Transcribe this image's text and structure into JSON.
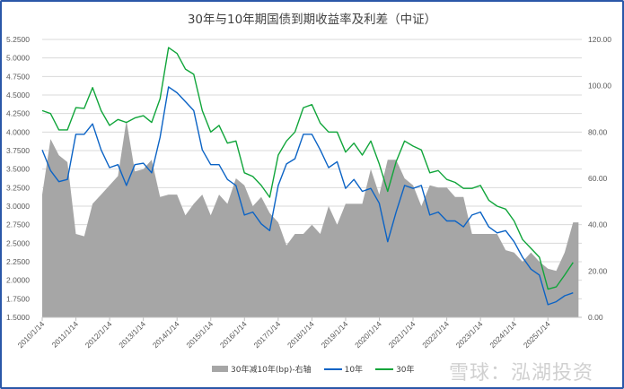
{
  "chart_data": {
    "type": "line",
    "title": "30年与10年期国债到期收益率及利差（中证）",
    "x": [
      "2010-01",
      "2010-04",
      "2010-07",
      "2010-10",
      "2011-01",
      "2011-04",
      "2011-07",
      "2011-10",
      "2012-01",
      "2012-04",
      "2012-07",
      "2012-10",
      "2013-01",
      "2013-04",
      "2013-07",
      "2013-10",
      "2014-01",
      "2014-04",
      "2014-07",
      "2014-10",
      "2015-01",
      "2015-04",
      "2015-07",
      "2015-10",
      "2016-01",
      "2016-04",
      "2016-07",
      "2016-10",
      "2017-01",
      "2017-04",
      "2017-07",
      "2017-10",
      "2018-01",
      "2018-04",
      "2018-07",
      "2018-10",
      "2019-01",
      "2019-04",
      "2019-07",
      "2019-10",
      "2020-01",
      "2020-04",
      "2020-07",
      "2020-10",
      "2021-01",
      "2021-04",
      "2021-07",
      "2021-10",
      "2022-01",
      "2022-04",
      "2022-07",
      "2022-10",
      "2023-01",
      "2023-04",
      "2023-07",
      "2023-10",
      "2024-01",
      "2024-04",
      "2024-07",
      "2024-10",
      "2025-01",
      "2025-04",
      "2025-07",
      "2025-10"
    ],
    "x_tick_labels": [
      "2010/1/14",
      "2011/1/14",
      "2012/1/14",
      "2013/1/14",
      "2014/1/14",
      "2015/1/14",
      "2016/1/14",
      "2017/1/14",
      "2018/1/14",
      "2019/1/14",
      "2020/1/14",
      "2021/1/14",
      "2022/1/14",
      "2023/1/14",
      "2024/1/14",
      "2025/1/14"
    ],
    "y_left": {
      "range": [
        1.5,
        5.25
      ],
      "step": 0.25,
      "tick_labels": [
        "1.5000",
        "1.7500",
        "2.0000",
        "2.2500",
        "2.5000",
        "2.7500",
        "3.0000",
        "3.2500",
        "3.5000",
        "3.7500",
        "4.0000",
        "4.2500",
        "4.5000",
        "4.7500",
        "5.0000",
        "5.2500"
      ]
    },
    "y_right": {
      "range": [
        0,
        120
      ],
      "step": 20,
      "tick_labels": [
        "0.00",
        "20.00",
        "40.00",
        "60.00",
        "80.00",
        "100.00",
        "120.00"
      ]
    },
    "grid": true,
    "legend_position": "bottom",
    "series": [
      {
        "name": "30年减10年(bp)-右轴",
        "kind": "area",
        "axis": "right",
        "color": "#a6a6a6",
        "values": [
          53,
          77,
          70,
          67,
          36,
          35,
          49,
          53,
          57,
          61,
          85,
          63,
          64,
          68,
          52,
          53,
          53,
          44,
          49,
          53,
          44,
          53,
          49,
          60,
          57,
          48,
          52,
          45,
          41,
          31,
          36,
          36,
          40,
          36,
          48,
          40,
          49,
          49,
          49,
          64,
          53,
          68,
          68,
          60,
          57,
          48,
          57,
          56,
          56,
          52,
          52,
          36,
          36,
          36,
          36,
          29,
          28,
          24,
          28,
          24,
          21,
          20,
          28,
          41
        ]
      },
      {
        "name": "10年",
        "kind": "line",
        "axis": "left",
        "color": "#0b63c5",
        "values": [
          3.76,
          3.48,
          3.33,
          3.36,
          3.97,
          3.97,
          4.11,
          3.76,
          3.52,
          3.56,
          3.28,
          3.56,
          3.58,
          3.45,
          3.93,
          4.61,
          4.53,
          4.41,
          4.29,
          3.76,
          3.56,
          3.56,
          3.36,
          3.28,
          2.88,
          2.92,
          2.76,
          2.67,
          3.28,
          3.57,
          3.64,
          3.97,
          3.97,
          3.76,
          3.52,
          3.6,
          3.24,
          3.36,
          3.2,
          3.24,
          3.04,
          2.52,
          2.92,
          3.28,
          3.24,
          3.28,
          2.88,
          2.92,
          2.8,
          2.8,
          2.72,
          2.88,
          2.92,
          2.72,
          2.64,
          2.67,
          2.52,
          2.31,
          2.15,
          2.07,
          1.67,
          1.71,
          1.79,
          1.83
        ]
      },
      {
        "name": "30年",
        "kind": "line",
        "axis": "left",
        "color": "#10a53a",
        "values": [
          4.29,
          4.25,
          4.03,
          4.03,
          4.33,
          4.32,
          4.6,
          4.29,
          4.09,
          4.17,
          4.13,
          4.19,
          4.22,
          4.13,
          4.45,
          5.14,
          5.06,
          4.85,
          4.78,
          4.29,
          4.0,
          4.09,
          3.85,
          3.88,
          3.45,
          3.4,
          3.28,
          3.12,
          3.69,
          3.88,
          4.0,
          4.33,
          4.37,
          4.12,
          4.0,
          4.0,
          3.73,
          3.85,
          3.69,
          3.88,
          3.57,
          3.2,
          3.6,
          3.88,
          3.81,
          3.76,
          3.45,
          3.48,
          3.36,
          3.32,
          3.24,
          3.24,
          3.28,
          3.08,
          3.0,
          2.96,
          2.8,
          2.55,
          2.43,
          2.31,
          1.88,
          1.91,
          2.07,
          2.24
        ]
      }
    ]
  },
  "watermark": "雪球：泓湖投资"
}
